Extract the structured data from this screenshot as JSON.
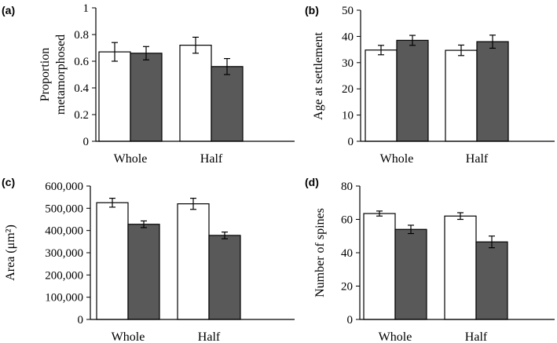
{
  "colors": {
    "series_a": "#ffffff",
    "series_b": "#595959",
    "outline": "#000000"
  },
  "chart_data": [
    {
      "type": "bar",
      "panel_label": "(a)",
      "ylabel_lines": [
        "Proportion",
        "metamorphosed"
      ],
      "categories": [
        "Whole",
        "Half"
      ],
      "ylim": [
        0,
        1
      ],
      "yticks": [
        0,
        0.2,
        0.4,
        0.6,
        0.8,
        1
      ],
      "ytick_labels": [
        "0",
        "0.2",
        "0.4",
        "0.6",
        "0.8",
        "1"
      ],
      "series": [
        {
          "values": [
            0.67,
            0.72
          ],
          "errors": [
            0.07,
            0.06
          ]
        },
        {
          "values": [
            0.66,
            0.56
          ],
          "errors": [
            0.05,
            0.06
          ]
        }
      ],
      "grid": false
    },
    {
      "type": "bar",
      "panel_label": "(b)",
      "ylabel_lines": [
        "Age at settlement"
      ],
      "categories": [
        "Whole",
        "Half"
      ],
      "ylim": [
        0,
        50
      ],
      "yticks": [
        0,
        10,
        20,
        30,
        40,
        50
      ],
      "ytick_labels": [
        "0",
        "10",
        "20",
        "30",
        "40",
        "50"
      ],
      "series": [
        {
          "values": [
            34.8,
            34.7
          ],
          "errors": [
            1.8,
            2.0
          ]
        },
        {
          "values": [
            38.5,
            38.0
          ],
          "errors": [
            1.9,
            2.5
          ]
        }
      ],
      "grid": false
    },
    {
      "type": "bar",
      "panel_label": "(c)",
      "ylabel_lines": [
        "Area (μm²)"
      ],
      "categories": [
        "Whole",
        "Half"
      ],
      "ylim": [
        0,
        600000
      ],
      "yticks": [
        0,
        100000,
        200000,
        300000,
        400000,
        500000,
        600000
      ],
      "ytick_labels": [
        "0",
        "100,000",
        "200,000",
        "300,000",
        "400,000",
        "500,000",
        "600,000"
      ],
      "series": [
        {
          "values": [
            525000,
            520000
          ],
          "errors": [
            20000,
            25000
          ]
        },
        {
          "values": [
            428000,
            378000
          ],
          "errors": [
            15000,
            15000
          ]
        }
      ],
      "grid": false
    },
    {
      "type": "bar",
      "panel_label": "(d)",
      "ylabel_lines": [
        "Number of spines"
      ],
      "categories": [
        "Whole",
        "Half"
      ],
      "ylim": [
        0,
        80
      ],
      "yticks": [
        0,
        20,
        40,
        60,
        80
      ],
      "ytick_labels": [
        "0",
        "20",
        "40",
        "60",
        "80"
      ],
      "series": [
        {
          "values": [
            63.5,
            62.0
          ],
          "errors": [
            1.5,
            2.0
          ]
        },
        {
          "values": [
            54.0,
            46.5
          ],
          "errors": [
            2.5,
            3.5
          ]
        }
      ],
      "grid": false
    }
  ]
}
